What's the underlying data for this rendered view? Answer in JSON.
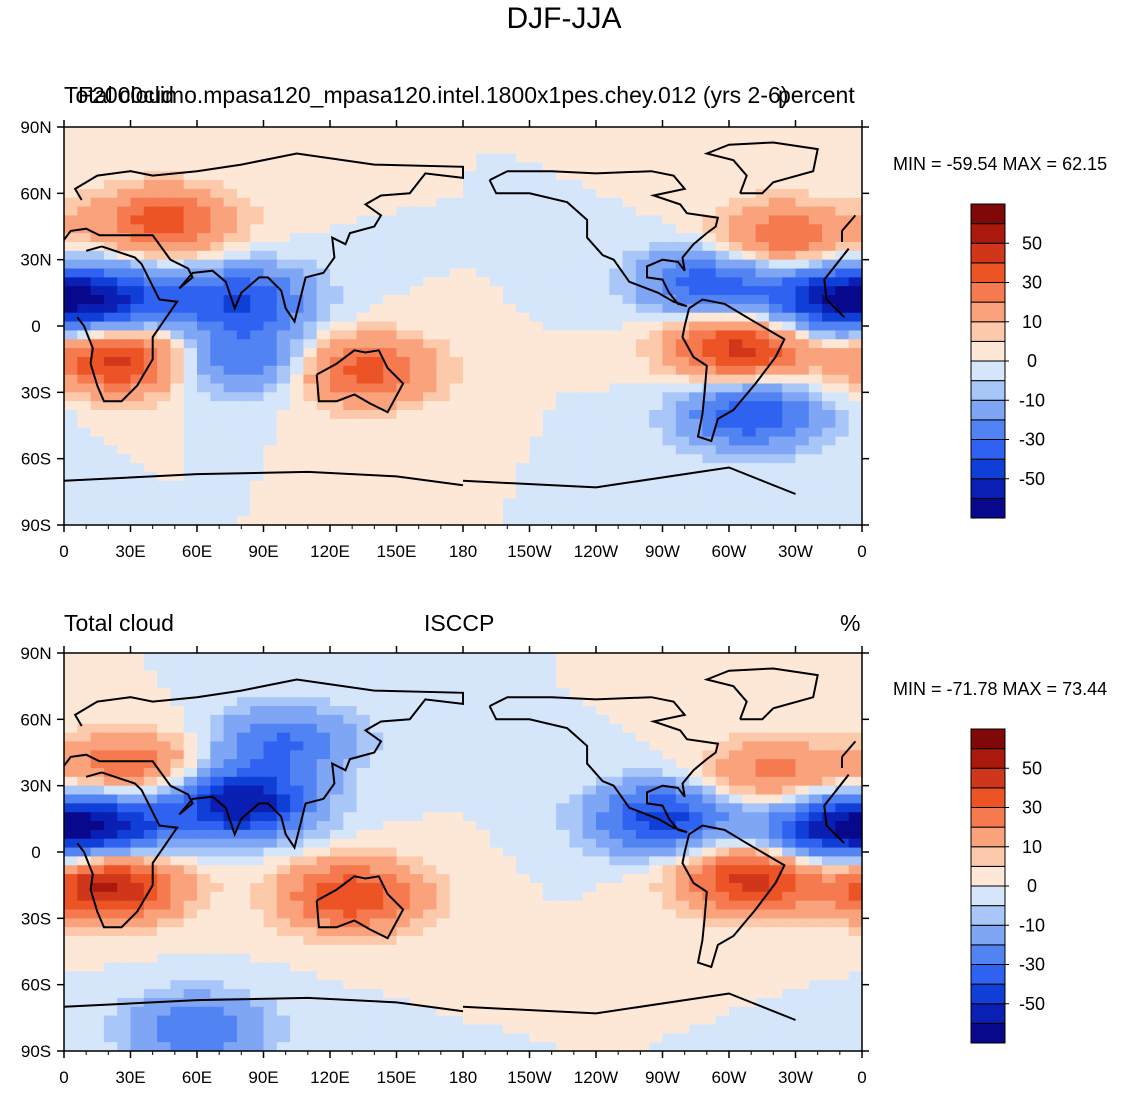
{
  "title": "DJF-JJA",
  "palette": [
    "#08088c",
    "#0a1fb3",
    "#0f3fd6",
    "#2f62f0",
    "#5283f2",
    "#7ea6f4",
    "#a9c6f8",
    "#d5e6fb",
    "#fde8d8",
    "#fcc9ab",
    "#f9a27b",
    "#f67a4f",
    "#ec5325",
    "#d0361a",
    "#a91a0c",
    "#7f0808"
  ],
  "colorbar_labels": [
    "50",
    "30",
    "10",
    "0",
    "-10",
    "-30",
    "-50"
  ],
  "x_ticks": [
    "0",
    "30E",
    "60E",
    "90E",
    "120E",
    "150E",
    "180",
    "150W",
    "120W",
    "90W",
    "60W",
    "30W",
    "0"
  ],
  "y_ticks": [
    "90N",
    "60N",
    "30N",
    "0",
    "30S",
    "60S",
    "90S"
  ],
  "panels": [
    {
      "left_label": "Total cloud",
      "center_label": "F2000climo.mpasa120_mpasa120.intel.1800x1pes.chey.012 (yrs 2-6)",
      "right_label": "percent",
      "stats": "MIN = -59.54 MAX =  62.15"
    },
    {
      "left_label": "Total cloud",
      "center_label": "ISCCP",
      "right_label": "%",
      "stats": "MIN = -71.78 MAX =  73.44"
    }
  ],
  "chart_data": [
    {
      "type": "heatmap",
      "title": "Total cloud — F2000climo.mpasa120_mpasa120.intel.1800x1pes.chey.012 (yrs 2-6)",
      "variable": "Total cloud",
      "units": "percent",
      "season": "DJF-JJA",
      "xlim": [
        0,
        360
      ],
      "ylim": [
        -90,
        90
      ],
      "contour_levels": [
        -70,
        -60,
        -50,
        -40,
        -30,
        -20,
        -10,
        -5,
        0,
        5,
        10,
        20,
        30,
        40,
        50,
        60,
        70
      ],
      "min": -59.54,
      "max": 62.15,
      "features": [
        {
          "lon": 45,
          "lat": 47,
          "value": 35
        },
        {
          "lon": 25,
          "lat": -15,
          "value": 45
        },
        {
          "lon": 305,
          "lat": -10,
          "value": 45
        },
        {
          "lon": 135,
          "lat": -20,
          "value": 35
        },
        {
          "lon": 325,
          "lat": 40,
          "value": 30
        },
        {
          "lon": 20,
          "lat": 12,
          "value": -45
        },
        {
          "lon": 80,
          "lat": 12,
          "value": -40
        },
        {
          "lon": 290,
          "lat": 20,
          "value": -35
        },
        {
          "lon": 345,
          "lat": 12,
          "value": -50
        },
        {
          "lon": 310,
          "lat": -40,
          "value": -40
        },
        {
          "lon": 80,
          "lat": -15,
          "value": -30
        }
      ]
    },
    {
      "type": "heatmap",
      "title": "Total cloud — ISCCP",
      "variable": "Total cloud",
      "units": "%",
      "season": "DJF-JJA",
      "xlim": [
        0,
        360
      ],
      "ylim": [
        -90,
        90
      ],
      "contour_levels": [
        -70,
        -60,
        -50,
        -40,
        -30,
        -20,
        -10,
        -5,
        0,
        5,
        10,
        20,
        30,
        40,
        50,
        60,
        70
      ],
      "min": -71.78,
      "max": 73.44,
      "features": [
        {
          "lon": 20,
          "lat": -15,
          "value": 55
        },
        {
          "lon": 310,
          "lat": -12,
          "value": 45
        },
        {
          "lon": 130,
          "lat": -20,
          "value": 40
        },
        {
          "lon": 30,
          "lat": 38,
          "value": 30
        },
        {
          "lon": 80,
          "lat": 22,
          "value": -60
        },
        {
          "lon": 20,
          "lat": 12,
          "value": -50
        },
        {
          "lon": 270,
          "lat": 15,
          "value": -45
        },
        {
          "lon": 345,
          "lat": 10,
          "value": -50
        },
        {
          "lon": 100,
          "lat": 50,
          "value": -30
        },
        {
          "lon": 60,
          "lat": -80,
          "value": -30
        },
        {
          "lon": 320,
          "lat": 35,
          "value": 25
        }
      ]
    }
  ]
}
